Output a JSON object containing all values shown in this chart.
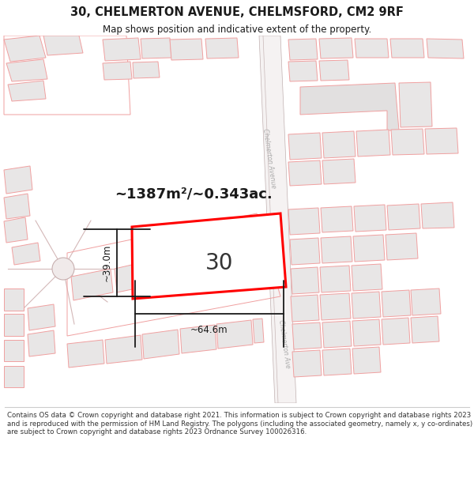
{
  "title_line1": "30, CHELMERTON AVENUE, CHELMSFORD, CM2 9RF",
  "title_line2": "Map shows position and indicative extent of the property.",
  "area_text": "~1387m²/~0.343ac.",
  "width_label": "~64.6m",
  "height_label": "~39.0m",
  "property_number": "30",
  "footer_text": "Contains OS data © Crown copyright and database right 2021. This information is subject to Crown copyright and database rights 2023 and is reproduced with the permission of HM Land Registry. The polygons (including the associated geometry, namely x, y co-ordinates) are subject to Crown copyright and database rights 2023 Ordnance Survey 100026316.",
  "bg_color": "#ffffff",
  "map_bg": "#f9f7f7",
  "red_color": "#ff0000",
  "building_fill": "#e8e6e6",
  "building_stroke": "#f0a0a0",
  "road_fill": "#f0ecec",
  "road_stroke": "#c8b8b8",
  "dim_color": "#1a1a1a",
  "text_color": "#1a1a1a",
  "road_label_color": "#aaaaaa"
}
